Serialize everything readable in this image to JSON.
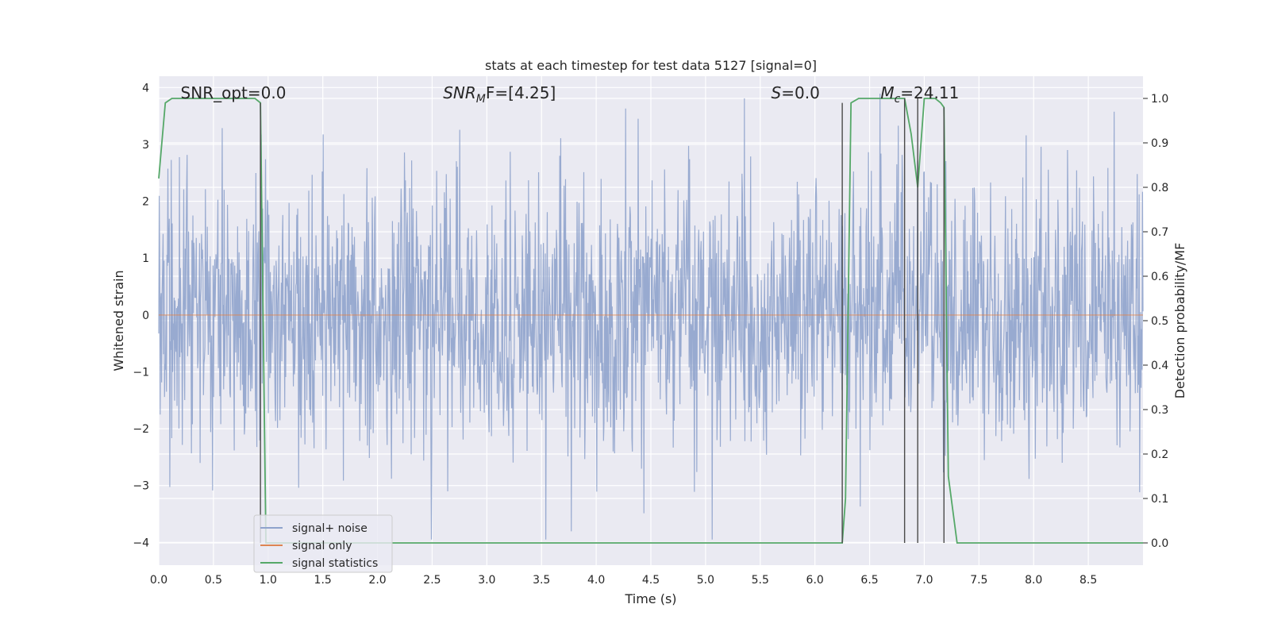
{
  "chart_data": {
    "type": "line",
    "title": "stats at each timestep for test data 5127 [signal=0]",
    "xlabel": "Time (s)",
    "ylabel": "Whitened strain",
    "y2label": "Detection probability/MF",
    "xlim": [
      0.0,
      9.0
    ],
    "ylim": [
      -4.4,
      4.2
    ],
    "y2lim": [
      -0.05,
      1.05
    ],
    "xticks": [
      "0.0",
      "0.5",
      "1.0",
      "1.5",
      "2.0",
      "2.5",
      "3.0",
      "3.5",
      "4.0",
      "4.5",
      "5.0",
      "5.5",
      "6.0",
      "6.5",
      "7.0",
      "7.5",
      "8.0",
      "8.5"
    ],
    "yticks": [
      "4",
      "3",
      "2",
      "1",
      "0",
      "−1",
      "−2",
      "−3",
      "−4"
    ],
    "y2ticks": [
      "1.0",
      "0.9",
      "0.8",
      "0.7",
      "0.6",
      "0.5",
      "0.4",
      "0.3",
      "0.2",
      "0.1",
      "0.0"
    ],
    "grid": true,
    "legend_position": "lower-left",
    "annotations": [
      {
        "text": "SNR_opt=0.0",
        "x": 0.2,
        "y": 3.85
      },
      {
        "text": "SNRₘF=[4.25]",
        "x": 2.6,
        "y": 3.85,
        "italic_prefix": "SNR",
        "sub": "M",
        "rest": "F=[4.25]"
      },
      {
        "text": "S=0.0",
        "x": 5.6,
        "y": 3.85,
        "italic_prefix": "S",
        "rest": "=0.0"
      },
      {
        "text": "Mc=24.11",
        "x": 6.6,
        "y": 3.85,
        "italic_prefix": "M",
        "sub": "c",
        "rest": "=24.11"
      }
    ],
    "series": [
      {
        "name": "signal+ noise",
        "color": "#8fa3cc",
        "kind": "noise",
        "amplitude_std": 0.85,
        "samples": 2048,
        "axis": "left"
      },
      {
        "name": "signal only",
        "color": "#dd8452",
        "kind": "flat",
        "value": 0.0,
        "axis": "left"
      },
      {
        "name": "signal statistics",
        "color": "#55a868",
        "axis": "right",
        "x": [
          0.0,
          0.06,
          0.12,
          0.2,
          0.5,
          0.8,
          0.88,
          0.93,
          0.98,
          1.05,
          1.2,
          2.0,
          3.0,
          4.0,
          5.0,
          6.0,
          6.2,
          6.25,
          6.28,
          6.33,
          6.4,
          6.5,
          6.6,
          6.7,
          6.8,
          6.82,
          6.88,
          6.94,
          7.0,
          7.05,
          7.1,
          7.15,
          7.18,
          7.22,
          7.3,
          7.5,
          8.0,
          8.5,
          9.0
        ],
        "y": [
          0.82,
          0.99,
          1.0,
          1.0,
          1.0,
          1.0,
          1.0,
          0.99,
          0.0,
          0.0,
          0.0,
          0.0,
          0.0,
          0.0,
          0.0,
          0.0,
          0.0,
          0.0,
          0.1,
          0.99,
          1.0,
          1.0,
          1.0,
          1.0,
          1.0,
          1.0,
          0.92,
          0.8,
          1.0,
          1.0,
          1.0,
          0.99,
          0.98,
          0.15,
          0.0,
          0.0,
          0.0,
          0.0,
          0.0
        ]
      }
    ],
    "vlines": [
      {
        "x": 0.93,
        "y2": [
          0.0,
          0.99
        ]
      },
      {
        "x": 6.25,
        "y2": [
          0.0,
          0.99
        ]
      },
      {
        "x": 6.82,
        "y2": [
          0.0,
          1.0
        ]
      },
      {
        "x": 6.94,
        "y2": [
          0.0,
          1.0
        ]
      },
      {
        "x": 7.18,
        "y2": [
          0.0,
          0.98
        ]
      }
    ],
    "colors": {
      "plot_bg": "#eaeaf2",
      "grid": "#ffffff",
      "vline": "#4a4a4a"
    }
  }
}
